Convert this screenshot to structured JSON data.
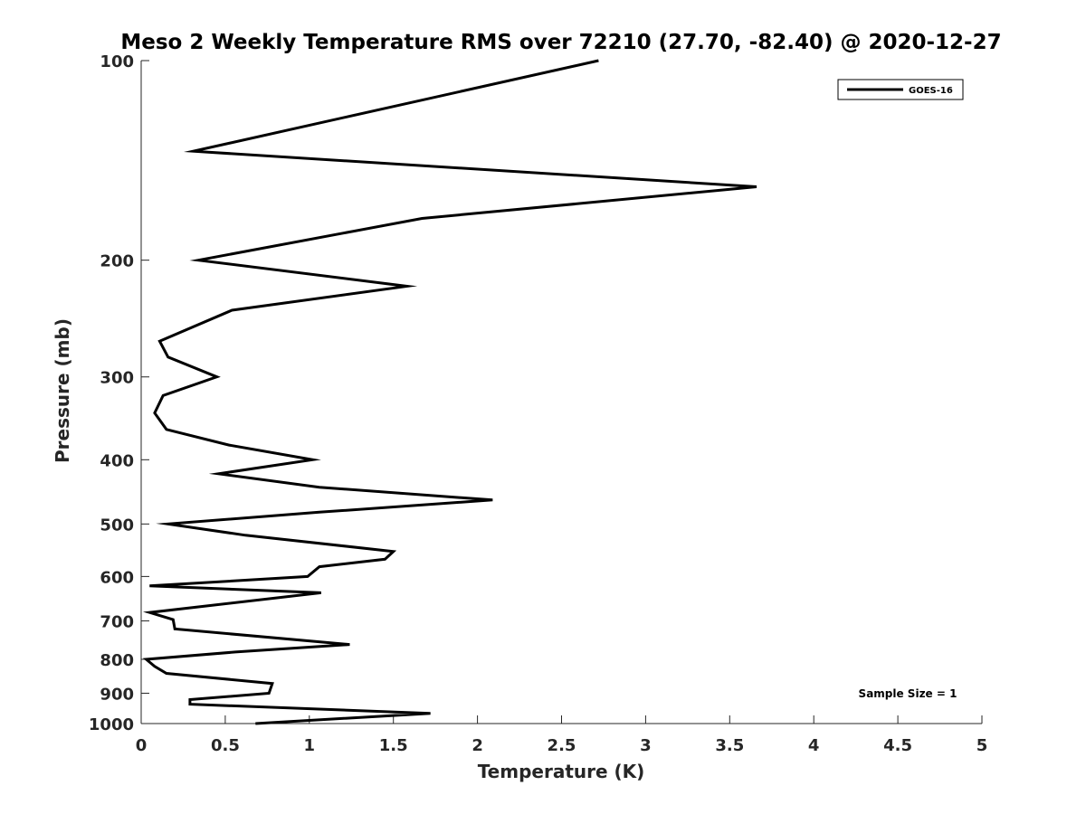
{
  "chart_data": {
    "type": "line",
    "title": "Meso 2 Weekly Temperature RMS over 72210 (27.70, -82.40) @ 2020-12-27",
    "xlabel": "Temperature (K)",
    "ylabel": "Pressure (mb)",
    "xlim": [
      0,
      5
    ],
    "ylim": [
      100,
      1000
    ],
    "y_scale": "log",
    "y_reversed": true,
    "x_ticks": [
      "0",
      "0.5",
      "1",
      "1.5",
      "2",
      "2.5",
      "3",
      "3.5",
      "4",
      "4.5",
      "5"
    ],
    "y_ticks": [
      "100",
      "200",
      "300",
      "400",
      "500",
      "600",
      "700",
      "800",
      "900",
      "1000"
    ],
    "grid": false,
    "legend_position": "top-right",
    "series": [
      {
        "name": "GOES-16",
        "color": "#000000",
        "points": [
          [
            2.72,
            100
          ],
          [
            0.31,
            137
          ],
          [
            3.66,
            155
          ],
          [
            1.67,
            173
          ],
          [
            0.34,
            200
          ],
          [
            1.58,
            219
          ],
          [
            0.54,
            238
          ],
          [
            0.11,
            265
          ],
          [
            0.16,
            280
          ],
          [
            0.45,
            300
          ],
          [
            0.13,
            320
          ],
          [
            0.08,
            340
          ],
          [
            0.15,
            360
          ],
          [
            0.52,
            380
          ],
          [
            1.02,
            400
          ],
          [
            0.46,
            420
          ],
          [
            1.06,
            440
          ],
          [
            2.09,
            460
          ],
          [
            1.06,
            480
          ],
          [
            0.16,
            500
          ],
          [
            0.62,
            520
          ],
          [
            1.5,
            550
          ],
          [
            1.45,
            565
          ],
          [
            1.06,
            580
          ],
          [
            0.99,
            600
          ],
          [
            0.05,
            620
          ],
          [
            1.07,
            635
          ],
          [
            0.05,
            680
          ],
          [
            0.19,
            697
          ],
          [
            0.2,
            720
          ],
          [
            1.24,
            760
          ],
          [
            0.56,
            780
          ],
          [
            0.03,
            800
          ],
          [
            0.08,
            820
          ],
          [
            0.15,
            840
          ],
          [
            0.78,
            870
          ],
          [
            0.76,
            900
          ],
          [
            0.29,
            920
          ],
          [
            0.29,
            935
          ],
          [
            1.72,
            965
          ],
          [
            0.68,
            1000
          ]
        ]
      }
    ],
    "annotations": [
      "Sample Size = 1"
    ]
  }
}
